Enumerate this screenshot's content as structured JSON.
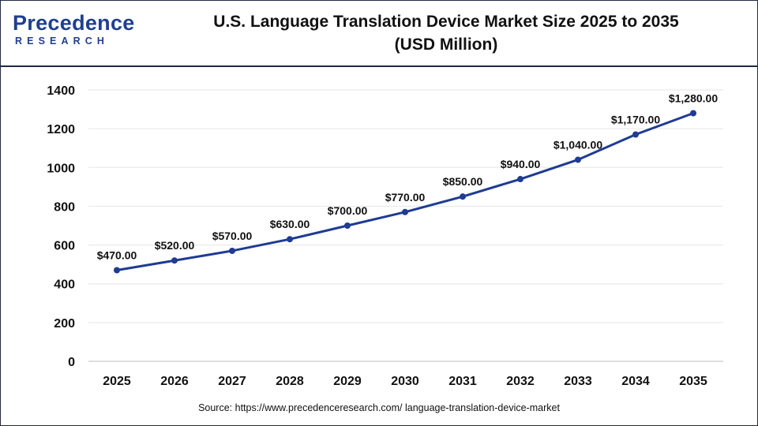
{
  "brand": {
    "logo_main": "Precedence",
    "logo_sub": "RESEARCH",
    "color": "#1f3f8f"
  },
  "title": {
    "line1": "U.S. Language Translation Device Market Size 2025 to 2035",
    "line2": "(USD Million)"
  },
  "source": "Source: https://www.precedenceresearch.com/ language-translation-device-market",
  "chart_data": {
    "type": "line",
    "title": "U.S. Language Translation Device Market Size 2025 to 2035 (USD Million)",
    "x": [
      "2025",
      "2026",
      "2027",
      "2028",
      "2029",
      "2030",
      "2031",
      "2032",
      "2033",
      "2034",
      "2035"
    ],
    "series": [
      {
        "values": [
          470,
          520,
          570,
          630,
          700,
          770,
          850,
          940,
          1040,
          1170,
          1280
        ],
        "labels": [
          "$470.00",
          "$520.00",
          "$570.00",
          "$630.00",
          "$700.00",
          "$770.00",
          "$850.00",
          "$940.00",
          "$1,040.00",
          "$1,170.00",
          "$1,280.00"
        ],
        "color": "#1f3b93"
      }
    ],
    "ylim": [
      0,
      1400
    ],
    "yticks": [
      "0",
      "200",
      "400",
      "600",
      "800",
      "1000",
      "1200",
      "1400"
    ],
    "ytick_values": [
      0,
      200,
      400,
      600,
      800,
      1000,
      1200,
      1400
    ],
    "grid": true,
    "grid_color": "#e6e6e6",
    "xlabel": "",
    "ylabel": ""
  }
}
